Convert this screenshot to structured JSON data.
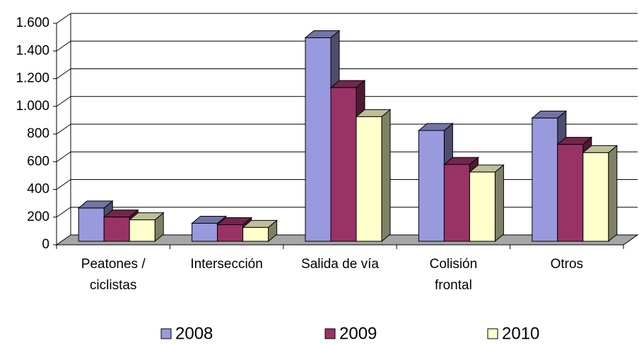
{
  "chart_data": {
    "type": "bar3d",
    "categories": [
      "Peatones /\nciclistas",
      "Intersección",
      "Salida de vía",
      "Colisión\nfrontal",
      "Otros"
    ],
    "series": [
      {
        "name": "2008",
        "color": "#9999dd",
        "values": [
          240,
          130,
          1470,
          800,
          890
        ]
      },
      {
        "name": "2009",
        "color": "#993366",
        "values": [
          175,
          120,
          1110,
          555,
          700
        ]
      },
      {
        "name": "2010",
        "color": "#ffffcc",
        "values": [
          155,
          100,
          900,
          500,
          640
        ]
      }
    ],
    "ylim": [
      0,
      1600
    ],
    "yticks": [
      0,
      200,
      400,
      600,
      800,
      {
        "value": 1000,
        "label": "1.000"
      },
      {
        "value": 1200,
        "label": "1.200"
      },
      {
        "value": 1400,
        "label": "1.400"
      },
      {
        "value": 1600,
        "label": "1.600"
      }
    ],
    "grid": true,
    "legend": "bottom"
  }
}
